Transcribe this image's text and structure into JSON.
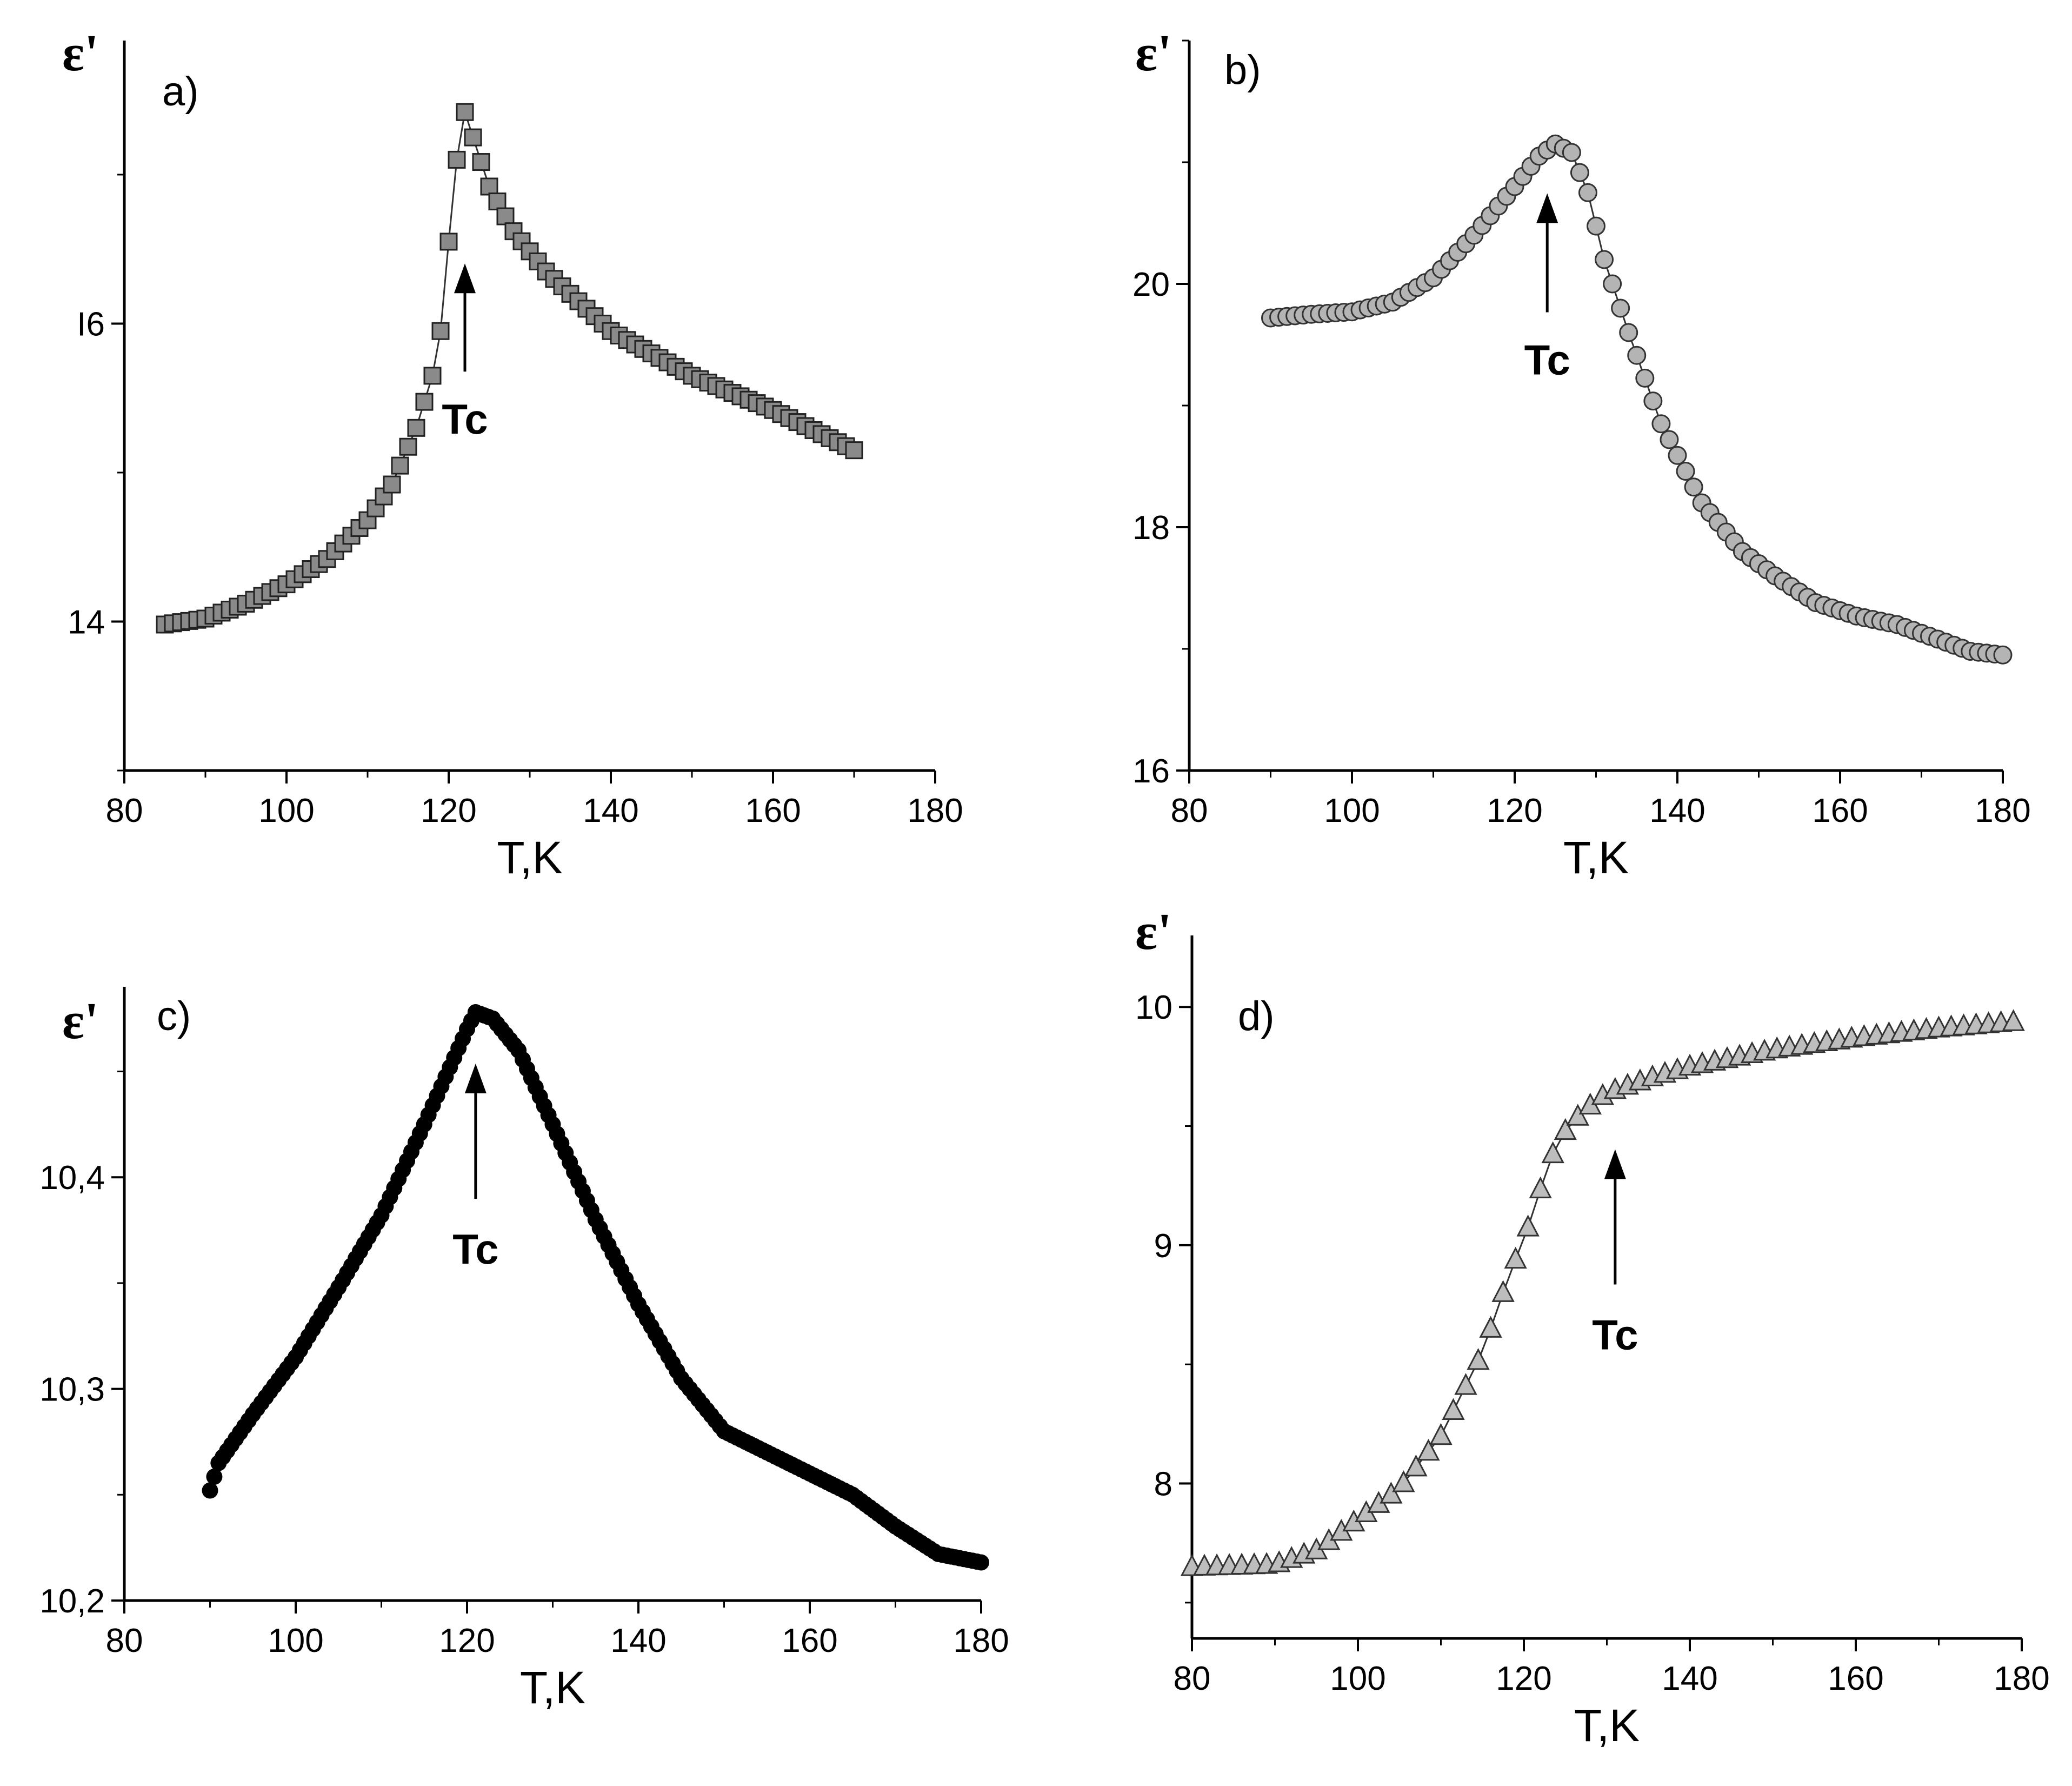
{
  "colors": {
    "square": "#8a8a8a",
    "circle": "#b4b4b4",
    "dot": "#000000",
    "triangle": "#bdbdbd",
    "axis": "#000000"
  },
  "chart_data": [
    {
      "panel": "a)",
      "type": "scatter",
      "marker": "square",
      "markerColorKey": "square",
      "connect": true,
      "xlabel": "T,K",
      "ylabel": "ε'",
      "annotation": "Tc",
      "tc": 122,
      "xlim": [
        80,
        180
      ],
      "ylim": [
        13,
        17.9
      ],
      "xticks": [
        80,
        100,
        120,
        140,
        160,
        180
      ],
      "xtick_labels": [
        "80",
        "100",
        "120",
        "140",
        "160",
        "180"
      ],
      "yticks": [
        14,
        16
      ],
      "ytick_labels": [
        "14",
        "I6"
      ],
      "curve": [
        [
          85,
          13.98
        ],
        [
          90,
          14.02
        ],
        [
          95,
          14.12
        ],
        [
          100,
          14.25
        ],
        [
          105,
          14.42
        ],
        [
          110,
          14.68
        ],
        [
          113,
          14.92
        ],
        [
          116,
          15.3
        ],
        [
          118,
          15.65
        ],
        [
          119,
          15.95
        ],
        [
          120,
          16.55
        ],
        [
          121,
          17.1
        ],
        [
          122,
          17.42
        ],
        [
          123,
          17.25
        ],
        [
          125,
          16.92
        ],
        [
          128,
          16.62
        ],
        [
          132,
          16.35
        ],
        [
          140,
          15.95
        ],
        [
          150,
          15.65
        ],
        [
          160,
          15.42
        ],
        [
          170,
          15.15
        ]
      ],
      "step": 1
    },
    {
      "panel": "b)",
      "type": "scatter",
      "marker": "circle",
      "markerColorKey": "circle",
      "connect": true,
      "xlabel": "T,K",
      "ylabel": "ε'",
      "annotation": "Tc",
      "tc": 124,
      "xlim": [
        80,
        180
      ],
      "ylim": [
        16,
        22
      ],
      "xticks": [
        80,
        100,
        120,
        140,
        160,
        180
      ],
      "xtick_labels": [
        "80",
        "100",
        "120",
        "140",
        "160",
        "180"
      ],
      "yticks": [
        16,
        18,
        20
      ],
      "ytick_labels": [
        "16",
        "18",
        "20"
      ],
      "curve": [
        [
          90,
          19.72
        ],
        [
          95,
          19.75
        ],
        [
          100,
          19.77
        ],
        [
          105,
          19.85
        ],
        [
          110,
          20.05
        ],
        [
          115,
          20.4
        ],
        [
          120,
          20.8
        ],
        [
          123,
          21.05
        ],
        [
          125,
          21.15
        ],
        [
          127,
          21.08
        ],
        [
          129,
          20.75
        ],
        [
          131,
          20.2
        ],
        [
          134,
          19.6
        ],
        [
          138,
          18.85
        ],
        [
          143,
          18.2
        ],
        [
          148,
          17.8
        ],
        [
          152,
          17.6
        ],
        [
          157,
          17.38
        ],
        [
          162,
          17.27
        ],
        [
          167,
          17.2
        ],
        [
          172,
          17.08
        ],
        [
          176,
          16.98
        ],
        [
          180,
          16.95
        ]
      ],
      "step": 1
    },
    {
      "panel": "c)",
      "type": "scatter",
      "marker": "dot",
      "markerColorKey": "dot",
      "connect": false,
      "xlabel": "T,K",
      "ylabel": "ε'",
      "annotation": "Tc",
      "tc": 121,
      "xlim": [
        80,
        180
      ],
      "ylim": [
        10.2,
        10.49
      ],
      "xticks": [
        80,
        100,
        120,
        140,
        160,
        180
      ],
      "xtick_labels": [
        "80",
        "100",
        "120",
        "140",
        "160",
        "180"
      ],
      "yticks": [
        10.2,
        10.3,
        10.4
      ],
      "ytick_labels": [
        "10,2",
        "10,3",
        "10,4"
      ],
      "curve": [
        [
          90,
          10.252
        ],
        [
          91,
          10.265
        ],
        [
          95,
          10.288
        ],
        [
          100,
          10.315
        ],
        [
          105,
          10.348
        ],
        [
          110,
          10.382
        ],
        [
          115,
          10.425
        ],
        [
          118,
          10.452
        ],
        [
          120,
          10.47
        ],
        [
          121,
          10.478
        ],
        [
          123,
          10.475
        ],
        [
          126,
          10.46
        ],
        [
          130,
          10.425
        ],
        [
          135,
          10.38
        ],
        [
          140,
          10.34
        ],
        [
          145,
          10.305
        ],
        [
          150,
          10.28
        ],
        [
          155,
          10.27
        ],
        [
          160,
          10.26
        ],
        [
          165,
          10.25
        ],
        [
          170,
          10.235
        ],
        [
          175,
          10.222
        ],
        [
          180,
          10.218
        ]
      ],
      "step": 0.5
    },
    {
      "panel": "d)",
      "type": "scatter",
      "marker": "triangle",
      "markerColorKey": "triangle",
      "connect": true,
      "xlabel": "T,K",
      "ylabel": "ε'",
      "annotation": "Tc",
      "tc": 131,
      "xlim": [
        80,
        180
      ],
      "ylim": [
        7.35,
        10.3
      ],
      "xticks": [
        80,
        100,
        120,
        140,
        160,
        180
      ],
      "xtick_labels": [
        "80",
        "100",
        "120",
        "140",
        "160",
        "180"
      ],
      "yticks": [
        8,
        9,
        10
      ],
      "ytick_labels": [
        "8",
        "9",
        "10"
      ],
      "curve": [
        [
          80,
          7.65
        ],
        [
          90,
          7.66
        ],
        [
          95,
          7.72
        ],
        [
          100,
          7.85
        ],
        [
          105,
          7.98
        ],
        [
          110,
          8.2
        ],
        [
          115,
          8.55
        ],
        [
          118,
          8.85
        ],
        [
          121,
          9.12
        ],
        [
          123,
          9.35
        ],
        [
          125,
          9.48
        ],
        [
          127,
          9.56
        ],
        [
          130,
          9.64
        ],
        [
          135,
          9.7
        ],
        [
          140,
          9.75
        ],
        [
          150,
          9.82
        ],
        [
          160,
          9.87
        ],
        [
          170,
          9.91
        ],
        [
          180,
          9.94
        ]
      ],
      "step": 1.5
    }
  ]
}
